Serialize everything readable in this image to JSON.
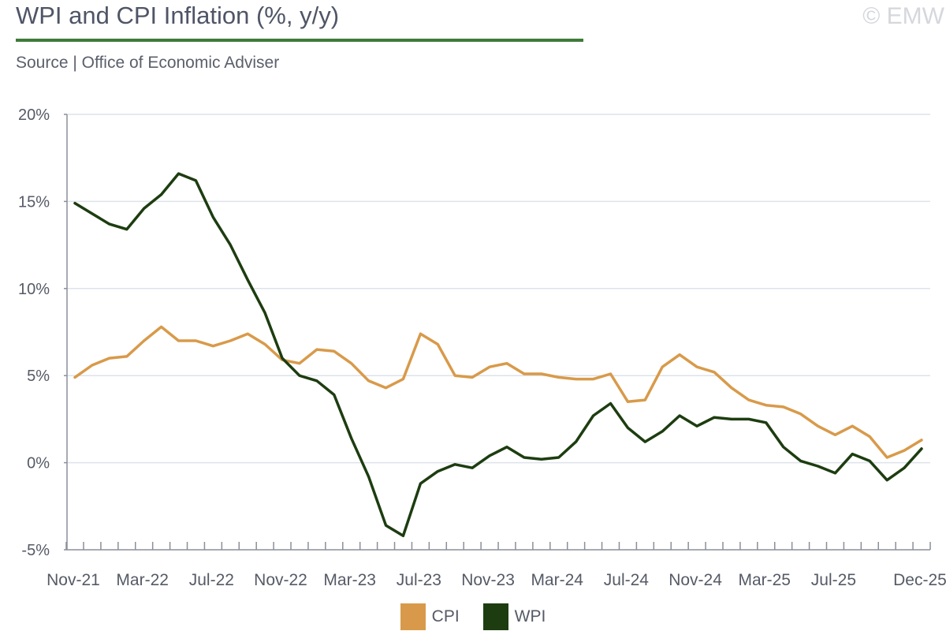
{
  "header": {
    "title": "WPI and CPI Inflation (%, y/y)",
    "subtitle": "Source | Office of Economic Adviser",
    "copyright": "© EMW"
  },
  "colors": {
    "cpi": "#d89a4a",
    "wpi": "#1d3d10",
    "accent": "#3f7a3a",
    "grid": "#dde3ea"
  },
  "chart_data": {
    "type": "line",
    "ylim": [
      -5,
      20
    ],
    "y_ticks": [
      -5,
      0,
      5,
      10,
      15,
      20
    ],
    "y_tick_labels": [
      "-5%",
      "0%",
      "5%",
      "10%",
      "15%",
      "20%"
    ],
    "x_tick_labels": [
      {
        "label": "Nov-21",
        "index": 0
      },
      {
        "label": "Mar-22",
        "index": 4
      },
      {
        "label": "Jul-22",
        "index": 8
      },
      {
        "label": "Nov-22",
        "index": 12
      },
      {
        "label": "Mar-23",
        "index": 16
      },
      {
        "label": "Jul-23",
        "index": 20
      },
      {
        "label": "Nov-23",
        "index": 24
      },
      {
        "label": "Mar-24",
        "index": 28
      },
      {
        "label": "Jul-24",
        "index": 32
      },
      {
        "label": "Nov-24",
        "index": 36
      },
      {
        "label": "Mar-25",
        "index": 40
      },
      {
        "label": "Jul-25",
        "index": 44
      },
      {
        "label": "Dec-25",
        "index": 49
      }
    ],
    "grid": true,
    "legend_position": "bottom",
    "series": [
      {
        "name": "CPI",
        "color": "#d89a4a",
        "values": [
          4.9,
          5.6,
          6.0,
          6.1,
          7.0,
          7.8,
          7.0,
          7.0,
          6.7,
          7.0,
          7.4,
          6.8,
          5.9,
          5.7,
          6.5,
          6.4,
          5.7,
          4.7,
          4.3,
          4.8,
          7.4,
          6.8,
          5.0,
          4.9,
          5.5,
          5.7,
          5.1,
          5.1,
          4.9,
          4.8,
          4.8,
          5.1,
          3.5,
          3.6,
          5.5,
          6.2,
          5.5,
          5.2,
          4.3,
          3.6,
          3.3,
          3.2,
          2.8,
          2.1,
          1.6,
          2.1,
          1.5,
          0.3,
          0.7,
          1.3
        ]
      },
      {
        "name": "WPI",
        "color": "#1d3d10",
        "values": [
          14.9,
          14.3,
          13.7,
          13.4,
          14.6,
          15.4,
          16.6,
          16.2,
          14.1,
          12.5,
          10.5,
          8.6,
          6.0,
          5.0,
          4.7,
          3.9,
          1.4,
          -0.8,
          -3.6,
          -4.2,
          -1.2,
          -0.5,
          -0.1,
          -0.3,
          0.4,
          0.9,
          0.3,
          0.2,
          0.3,
          1.2,
          2.7,
          3.4,
          2.0,
          1.2,
          1.8,
          2.7,
          2.1,
          2.6,
          2.5,
          2.5,
          2.3,
          0.9,
          0.1,
          -0.2,
          -0.6,
          0.5,
          0.1,
          -1.0,
          -0.3,
          0.8
        ]
      }
    ]
  }
}
